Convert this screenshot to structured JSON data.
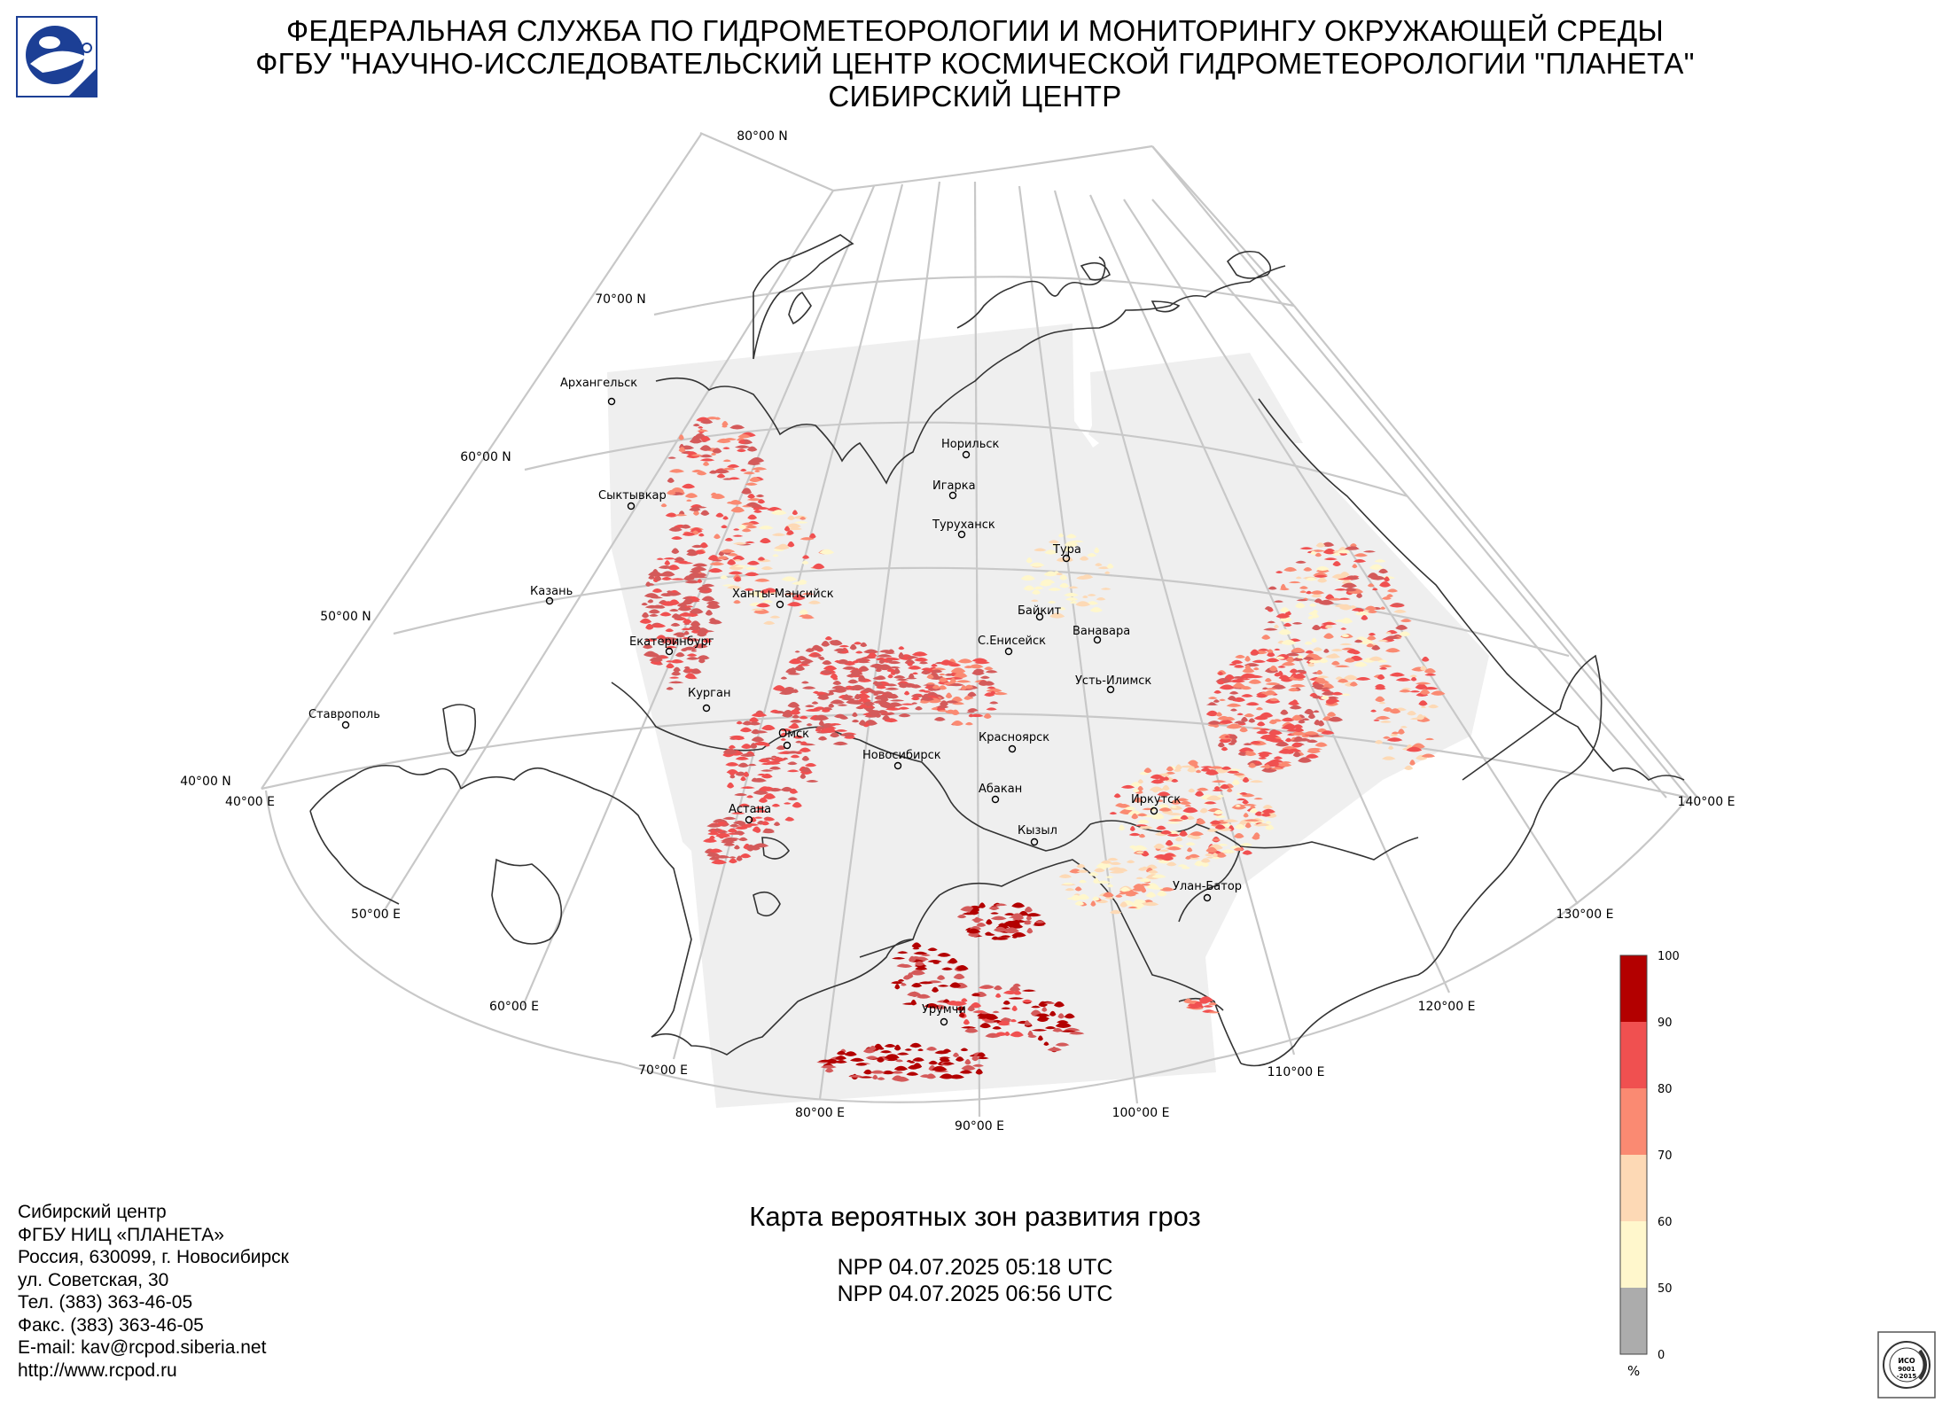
{
  "header": {
    "line1": "ФЕДЕРАЛЬНАЯ СЛУЖБА ПО ГИДРОМЕТЕОРОЛОГИИ И МОНИТОРИНГУ ОКРУЖАЮЩЕЙ СРЕДЫ",
    "line2": "ФГБУ \"НАУЧНО-ИССЛЕДОВАТЕЛЬСКИЙ ЦЕНТР КОСМИЧЕСКОЙ ГИДРОМЕТЕОРОЛОГИИ \"ПЛАНЕТА\"",
    "line3": "СИБИРСКИЙ ЦЕНТР",
    "logo_icon": "planeta-logo-icon"
  },
  "map": {
    "latitude_labels": [
      "80°00 N",
      "70°00 N",
      "60°00 N",
      "50°00 N",
      "40°00 N"
    ],
    "longitude_labels": [
      "40°00 E",
      "50°00 E",
      "60°00 E",
      "70°00 E",
      "80°00 E",
      "90°00 E",
      "100°00 E",
      "110°00 E",
      "120°00 E",
      "130°00 E",
      "140°00 E"
    ],
    "cities": [
      "Архангельск",
      "Норильск",
      "Игарка",
      "Сыктывкар",
      "Туруханск",
      "Тура",
      "Казань",
      "Ханты-Мансийск",
      "Байкит",
      "Ванавара",
      "Екатеринбург",
      "С.Енисейск",
      "Усть-Илимск",
      "Курган",
      "Ставрополь",
      "Омск",
      "Красноярск",
      "Новосибирск",
      "Абакан",
      "Иркутск",
      "Астана",
      "Кызыл",
      "Улан-Батор",
      "Урумчи"
    ],
    "colors": {
      "coverage": "#efefef",
      "grid": "#c8c8c8",
      "border": "#333333"
    }
  },
  "colorbar": {
    "unit": "%",
    "ticks": [
      "100",
      "90",
      "80",
      "70",
      "60",
      "50",
      "0"
    ],
    "colors": [
      "#b30000",
      "#f05050",
      "#fa8a72",
      "#fdd9b5",
      "#fff7cc",
      "#acacac"
    ]
  },
  "footer": {
    "map_title": "Карта вероятных зон развития гроз",
    "pass1": "NPP 04.07.2025  05:18 UTC",
    "pass2": "NPP 04.07.2025  06:56 UTC",
    "contact": [
      "Сибирский центр",
      "ФГБУ НИЦ «ПЛАНЕТА»",
      "Россия, 630099, г. Новосибирск",
      "ул. Советская, 30",
      "Тел. (383) 363-46-05",
      "Факс. (383) 363-46-05",
      "E-mail: kav@rcpod.siberia.net",
      "http://www.rcpod.ru"
    ],
    "iso_text": "ISO 9001-2015",
    "iso_icon": "iso-certification-icon"
  }
}
